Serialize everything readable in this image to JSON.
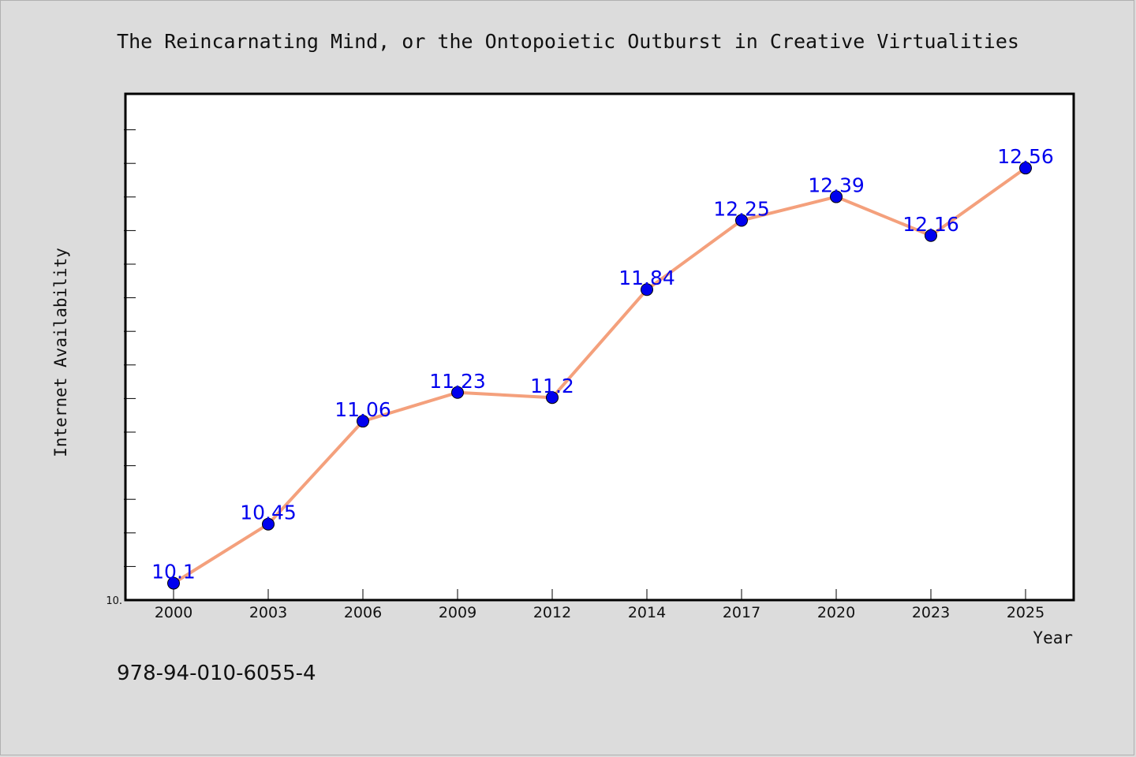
{
  "chart_data": {
    "type": "line",
    "title": "The Reincarnating Mind, or the Ontopoietic Outburst in Creative Virtualities",
    "xlabel": "Year",
    "ylabel": "Internet Availability",
    "categories": [
      "2000",
      "2003",
      "2006",
      "2009",
      "2012",
      "2014",
      "2017",
      "2020",
      "2023",
      "2025"
    ],
    "series": [
      {
        "values": [
          10.1,
          10.45,
          11.06,
          11.23,
          11.2,
          11.84,
          12.25,
          12.39,
          12.16,
          12.56
        ],
        "labels": [
          "10.1",
          "10.45",
          "11.06",
          "11.23",
          "11.2",
          "11.84",
          "12.25",
          "12.39",
          "12.16",
          "12.56"
        ],
        "line_color": "#f4a07c",
        "marker_color": "#0000ee"
      }
    ],
    "ylim": [
      10.0,
      13.0
    ],
    "y_tick_label": "10.",
    "grid": false,
    "legend": "none"
  },
  "footnote": "978-94-010-6055-4"
}
